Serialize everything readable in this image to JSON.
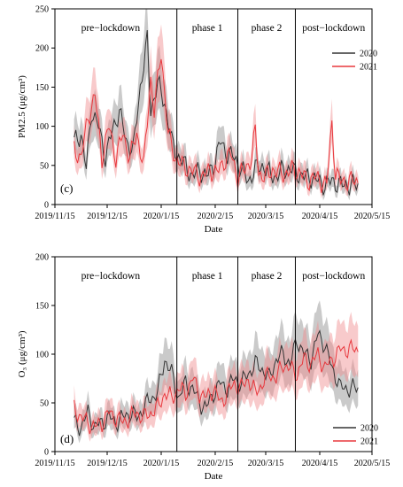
{
  "colors": {
    "2020": "#333333",
    "2021": "#e8383d",
    "band2020": "#8a8a8a",
    "band2021": "#f08a8c"
  },
  "chart_data": [
    {
      "type": "line",
      "panel_label": "(c)",
      "ylabel": "PM2.5 (μg/cm³)",
      "xlabel": "Date",
      "ylim": [
        0,
        250
      ],
      "yticks": [
        0,
        50,
        100,
        150,
        200,
        250
      ],
      "xlim": [
        "2019-11-15",
        "2020-05-15"
      ],
      "xticks": [
        "2019/11/15",
        "2019/12/15",
        "2020/1/15",
        "2020/2/15",
        "2020/3/15",
        "2020/4/15",
        "2020/5/15"
      ],
      "phase_boundaries": [
        "2020-01-24",
        "2020-02-28",
        "2020-04-01"
      ],
      "phases": [
        "pre−lockdown",
        "phase 1",
        "phase 2",
        "post−lockdown"
      ],
      "legend_position": "top-right",
      "data_start": "2019-11-26",
      "data_end": "2020-05-07",
      "series": [
        {
          "name": "2020",
          "anchors": [
            [
              0,
              80
            ],
            [
              4,
              90
            ],
            [
              7,
              45
            ],
            [
              10,
              120
            ],
            [
              14,
              100
            ],
            [
              18,
              60
            ],
            [
              22,
              95
            ],
            [
              26,
              120
            ],
            [
              30,
              80
            ],
            [
              34,
              70
            ],
            [
              38,
              150
            ],
            [
              42,
              210
            ],
            [
              44,
              120
            ],
            [
              48,
              155
            ],
            [
              52,
              130
            ],
            [
              56,
              80
            ],
            [
              60,
              60
            ],
            [
              64,
              50
            ],
            [
              68,
              35
            ],
            [
              72,
              45
            ],
            [
              76,
              35
            ],
            [
              80,
              50
            ],
            [
              84,
              80
            ],
            [
              88,
              65
            ],
            [
              92,
              60
            ],
            [
              96,
              45
            ],
            [
              100,
              30
            ],
            [
              104,
              45
            ],
            [
              108,
              50
            ],
            [
              112,
              40
            ],
            [
              116,
              35
            ],
            [
              120,
              45
            ],
            [
              124,
              45
            ],
            [
              128,
              40
            ],
            [
              132,
              35
            ],
            [
              136,
              35
            ],
            [
              140,
              30
            ],
            [
              144,
              25
            ],
            [
              148,
              30
            ],
            [
              153,
              25
            ]
          ]
        },
        {
          "name": "2021",
          "anchors": [
            [
              0,
              70
            ],
            [
              4,
              60
            ],
            [
              8,
              110
            ],
            [
              12,
              140
            ],
            [
              16,
              60
            ],
            [
              20,
              100
            ],
            [
              24,
              60
            ],
            [
              28,
              90
            ],
            [
              32,
              60
            ],
            [
              36,
              90
            ],
            [
              40,
              50
            ],
            [
              44,
              160
            ],
            [
              46,
              120
            ],
            [
              50,
              195
            ],
            [
              54,
              90
            ],
            [
              58,
              60
            ],
            [
              62,
              50
            ],
            [
              66,
              45
            ],
            [
              70,
              40
            ],
            [
              74,
              35
            ],
            [
              78,
              45
            ],
            [
              82,
              40
            ],
            [
              86,
              55
            ],
            [
              90,
              65
            ],
            [
              94,
              35
            ],
            [
              98,
              45
            ],
            [
              102,
              60
            ],
            [
              104,
              95
            ],
            [
              106,
              40
            ],
            [
              110,
              35
            ],
            [
              114,
              45
            ],
            [
              118,
              40
            ],
            [
              122,
              40
            ],
            [
              126,
              45
            ],
            [
              130,
              40
            ],
            [
              134,
              30
            ],
            [
              138,
              35
            ],
            [
              142,
              30
            ],
            [
              145,
              25
            ],
            [
              148,
              105
            ],
            [
              150,
              40
            ],
            [
              153,
              30
            ]
          ]
        }
      ]
    },
    {
      "type": "line",
      "panel_label": "(d)",
      "ylabel": "O₃ (μg/cm³)",
      "xlabel": "Date",
      "ylim": [
        0,
        200
      ],
      "yticks": [
        0,
        50,
        100,
        150,
        200
      ],
      "xlim": [
        "2019-11-15",
        "2020-05-15"
      ],
      "xticks": [
        "2019/11/15",
        "2019/12/15",
        "2020/1/15",
        "2020/2/15",
        "2020/3/15",
        "2020/4/15",
        "2020/5/15"
      ],
      "phase_boundaries": [
        "2020-01-24",
        "2020-02-28",
        "2020-04-01"
      ],
      "phases": [
        "pre−lockdown",
        "phase 1",
        "phase 2",
        "post−lockdown"
      ],
      "legend_position": "bottom-right",
      "data_start": "2019-11-26",
      "data_end": "2020-05-07",
      "series": [
        {
          "name": "2020",
          "anchors": [
            [
              0,
              30
            ],
            [
              4,
              25
            ],
            [
              8,
              40
            ],
            [
              12,
              25
            ],
            [
              16,
              30
            ],
            [
              20,
              35
            ],
            [
              24,
              30
            ],
            [
              28,
              35
            ],
            [
              32,
              40
            ],
            [
              36,
              35
            ],
            [
              40,
              45
            ],
            [
              44,
              55
            ],
            [
              48,
              60
            ],
            [
              52,
              95
            ],
            [
              56,
              80
            ],
            [
              60,
              55
            ],
            [
              64,
              70
            ],
            [
              68,
              65
            ],
            [
              72,
              50
            ],
            [
              76,
              45
            ],
            [
              80,
              60
            ],
            [
              84,
              70
            ],
            [
              88,
              65
            ],
            [
              92,
              75
            ],
            [
              96,
              70
            ],
            [
              100,
              80
            ],
            [
              104,
              90
            ],
            [
              108,
              85
            ],
            [
              112,
              75
            ],
            [
              116,
              95
            ],
            [
              120,
              100
            ],
            [
              124,
              90
            ],
            [
              128,
              115
            ],
            [
              132,
              100
            ],
            [
              136,
              95
            ],
            [
              140,
              120
            ],
            [
              144,
              110
            ],
            [
              148,
              85
            ],
            [
              151,
              75
            ],
            [
              153,
              65
            ]
          ]
        },
        {
          "name": "2021",
          "anchors": [
            [
              0,
              45
            ],
            [
              4,
              35
            ],
            [
              8,
              30
            ],
            [
              12,
              25
            ],
            [
              16,
              30
            ],
            [
              20,
              40
            ],
            [
              24,
              35
            ],
            [
              28,
              30
            ],
            [
              32,
              35
            ],
            [
              36,
              40
            ],
            [
              40,
              35
            ],
            [
              44,
              40
            ],
            [
              48,
              45
            ],
            [
              52,
              60
            ],
            [
              56,
              55
            ],
            [
              60,
              65
            ],
            [
              64,
              60
            ],
            [
              68,
              75
            ],
            [
              72,
              60
            ],
            [
              76,
              55
            ],
            [
              80,
              65
            ],
            [
              84,
              50
            ],
            [
              88,
              60
            ],
            [
              92,
              70
            ],
            [
              96,
              65
            ],
            [
              100,
              75
            ],
            [
              104,
              60
            ],
            [
              108,
              70
            ],
            [
              112,
              80
            ],
            [
              116,
              75
            ],
            [
              120,
              90
            ],
            [
              124,
              85
            ],
            [
              128,
              80
            ],
            [
              132,
              95
            ],
            [
              136,
              90
            ],
            [
              140,
              100
            ],
            [
              144,
              85
            ],
            [
              148,
              95
            ],
            [
              151,
              100
            ],
            [
              153,
              105
            ]
          ]
        }
      ]
    }
  ]
}
